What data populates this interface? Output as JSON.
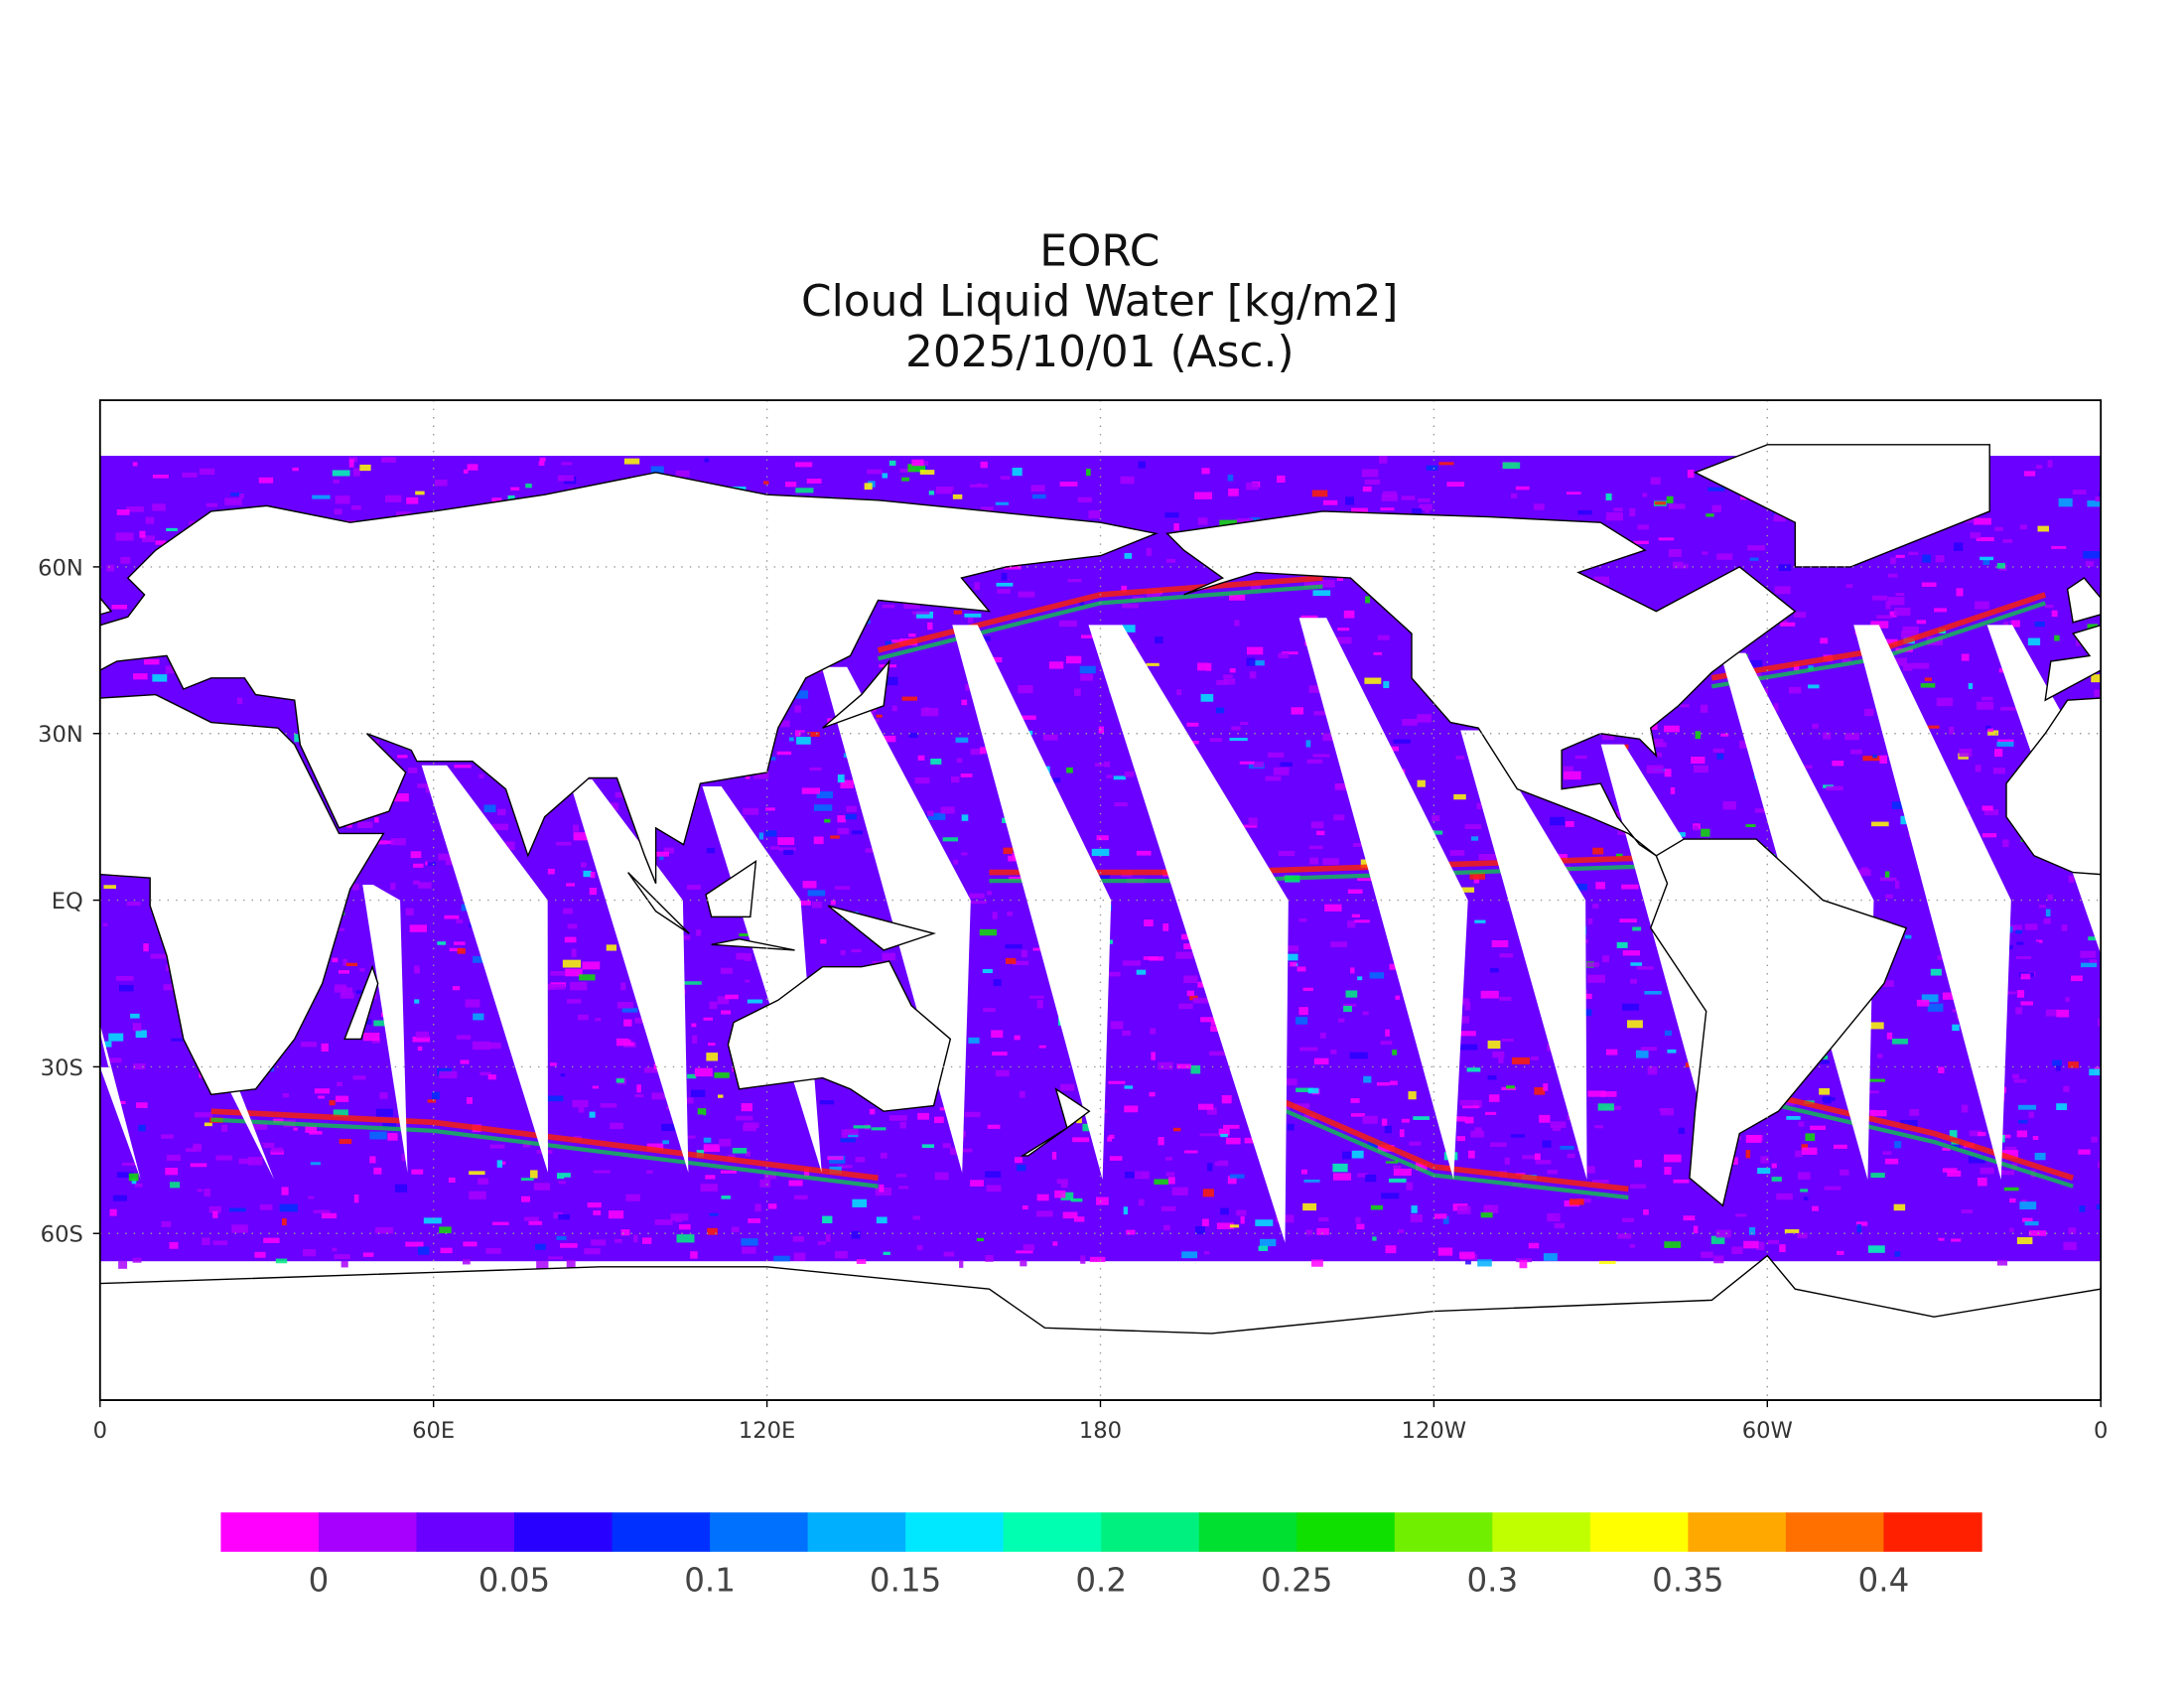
{
  "title": [
    "EORC",
    "Cloud Liquid Water [kg/m2]",
    "2025/10/01 (Asc.)"
  ],
  "map": {
    "xticks": [
      "0",
      "60E",
      "120E",
      "180",
      "120W",
      "60W",
      "0"
    ],
    "yticks": [
      "60N",
      "30N",
      "EQ",
      "30S",
      "60S"
    ]
  },
  "colorbar": {
    "colors": [
      "#ff00ff",
      "#a800ff",
      "#6a00ff",
      "#2800ff",
      "#0030ff",
      "#0070ff",
      "#00b0ff",
      "#00e8ff",
      "#00ffb0",
      "#00f080",
      "#00e030",
      "#10e000",
      "#70f000",
      "#c0ff00",
      "#ffff00",
      "#ffa800",
      "#ff7000",
      "#ff2000"
    ],
    "ticks": [
      0,
      0.05,
      0.1,
      0.15,
      0.2,
      0.25,
      0.3,
      0.35,
      0.4
    ]
  }
}
